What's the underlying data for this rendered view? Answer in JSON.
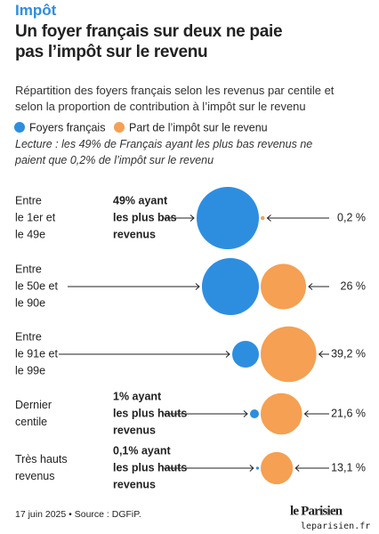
{
  "chart_data": {
    "type": "bubble",
    "kicker": "Impôt",
    "title": "Un foyer français sur deux ne paie pas l’impôt sur le revenu",
    "subtitle": "Répartition des foyers français selon les revenus par centile et selon la proportion de contribution à l’impôt sur le revenu",
    "note": "Lecture : les 49% de Français ayant les plus bas revenus ne paient que 0,2% de l’impôt sur le revenu",
    "categories": [
      [
        "Entre",
        "le 1er et",
        "le 49e"
      ],
      [
        "Entre",
        "le 50e et",
        "le 90e"
      ],
      [
        "Entre",
        "le 91e et",
        "le 99e"
      ],
      [
        "Dernier",
        "centile"
      ],
      [
        "Très hauts",
        "revenus"
      ]
    ],
    "annotations": [
      [
        "49% ayant",
        "les plus bas",
        "revenus"
      ],
      null,
      null,
      [
        "1% ayant",
        "les plus hauts",
        "revenus"
      ],
      [
        "0,1% ayant",
        "les plus hauts",
        "revenus"
      ]
    ],
    "series": [
      {
        "name": "Foyers français",
        "color": "#2d8ee0",
        "values": [
          49,
          41,
          9,
          1,
          0.1
        ]
      },
      {
        "name": "Part de l’impôt sur le revenu",
        "color": "#f5a053",
        "values": [
          0.2,
          26,
          39.2,
          21.6,
          13.1
        ],
        "value_labels": [
          "0,2 %",
          "26 %",
          "39,2 %",
          "21,6 %",
          "13,1 %"
        ]
      }
    ],
    "source": "17 juin 2025 • Source : DGFiP.",
    "logo": "le Parisien",
    "credit": "leparisien.fr"
  }
}
